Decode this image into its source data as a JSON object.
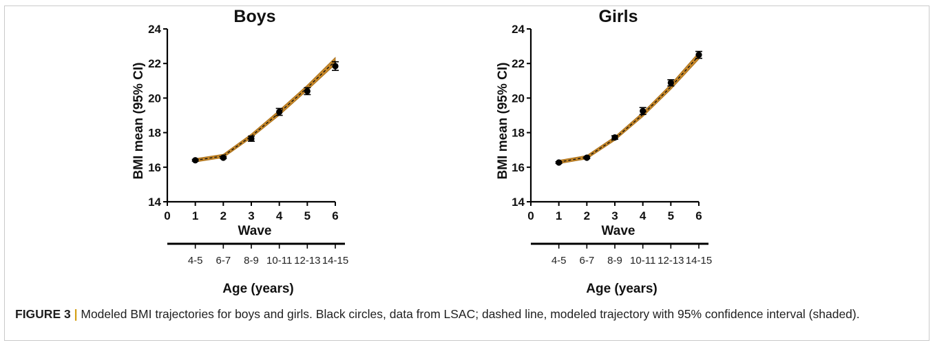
{
  "chart_data": [
    {
      "type": "line",
      "title": "Boys",
      "xlabel": "Wave",
      "ylabel": "BMI mean (95% CI)",
      "secondary_xlabel": "Age (years)",
      "x_ticks": [
        "0",
        "1",
        "2",
        "3",
        "4",
        "5",
        "6"
      ],
      "y_ticks": [
        "14",
        "16",
        "18",
        "20",
        "22",
        "24"
      ],
      "xlim": [
        0,
        6
      ],
      "ylim": [
        14,
        24
      ],
      "age_ticks": [
        "4-5",
        "6-7",
        "8-9",
        "10-11",
        "12-13",
        "14-15"
      ],
      "grid": false,
      "model_band": {
        "x": [
          1,
          2,
          3,
          4,
          5,
          6
        ],
        "mean": [
          16.4,
          16.65,
          17.8,
          19.15,
          20.6,
          22.15
        ],
        "lower": [
          16.3,
          16.55,
          17.7,
          19.0,
          20.45,
          21.95
        ],
        "upper": [
          16.5,
          16.75,
          17.92,
          19.3,
          20.75,
          22.35
        ],
        "color": "#c8892a"
      },
      "observed": {
        "x": [
          1,
          2,
          3,
          4,
          5,
          6
        ],
        "y": [
          16.4,
          16.55,
          17.65,
          19.2,
          20.4,
          21.85
        ],
        "ci_low": [
          16.35,
          16.5,
          17.5,
          19.0,
          20.2,
          21.6
        ],
        "ci_high": [
          16.45,
          16.6,
          17.8,
          19.4,
          20.6,
          22.1
        ],
        "color": "#000000"
      }
    },
    {
      "type": "line",
      "title": "Girls",
      "xlabel": "Wave",
      "ylabel": "BMI mean (95% CI)",
      "secondary_xlabel": "Age (years)",
      "x_ticks": [
        "0",
        "1",
        "2",
        "3",
        "4",
        "5",
        "6"
      ],
      "y_ticks": [
        "14",
        "16",
        "18",
        "20",
        "22",
        "24"
      ],
      "xlim": [
        0,
        6
      ],
      "ylim": [
        14,
        24
      ],
      "age_ticks": [
        "4-5",
        "6-7",
        "8-9",
        "10-11",
        "12-13",
        "14-15"
      ],
      "grid": false,
      "model_band": {
        "x": [
          1,
          2,
          3,
          4,
          5,
          6
        ],
        "mean": [
          16.3,
          16.58,
          17.65,
          19.05,
          20.65,
          22.45
        ],
        "lower": [
          16.2,
          16.48,
          17.55,
          18.92,
          20.5,
          22.25
        ],
        "upper": [
          16.4,
          16.68,
          17.77,
          19.18,
          20.8,
          22.65
        ],
        "color": "#c8892a"
      },
      "observed": {
        "x": [
          1,
          2,
          3,
          4,
          5,
          6
        ],
        "y": [
          16.27,
          16.55,
          17.72,
          19.25,
          20.88,
          22.5
        ],
        "ci_low": [
          16.22,
          16.5,
          17.62,
          19.05,
          20.7,
          22.3
        ],
        "ci_high": [
          16.32,
          16.6,
          17.82,
          19.45,
          21.06,
          22.7
        ],
        "color": "#000000"
      }
    }
  ],
  "caption": {
    "label": "FIGURE 3",
    "separator": "|",
    "text": "Modeled BMI trajectories for boys and girls. Black circles, data from LSAC; dashed line, modeled trajectory with 95% confidence interval (shaded)."
  }
}
